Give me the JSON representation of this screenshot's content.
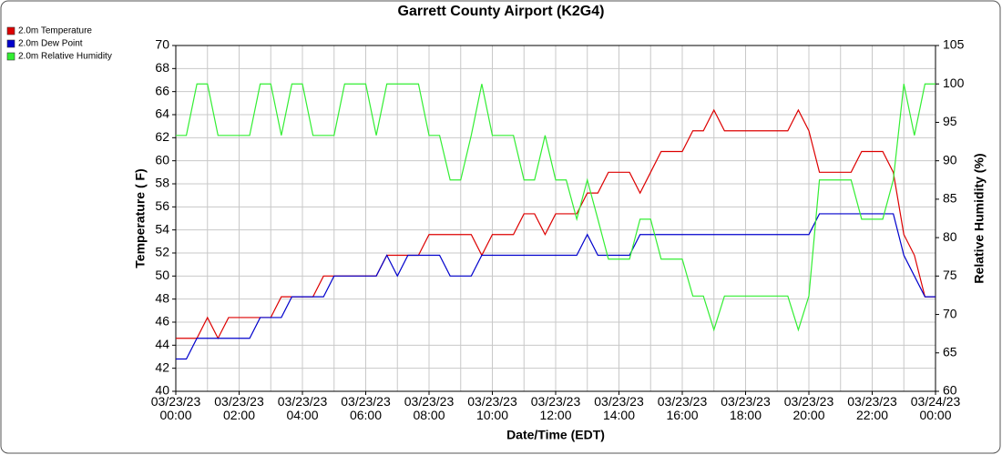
{
  "chart_data": {
    "type": "line",
    "title": "Garrett County Airport (K2G4)",
    "x_label": "Date/Time (EDT)",
    "y_label": "Temperature ( F)",
    "y2_label": "Relative Humidity (%)",
    "legend": "top-left",
    "grid": true,
    "x": [
      "2023-03-23 00:00",
      "2023-03-23 00:20",
      "2023-03-23 00:40",
      "2023-03-23 01:00",
      "2023-03-23 01:20",
      "2023-03-23 01:40",
      "2023-03-23 02:00",
      "2023-03-23 02:20",
      "2023-03-23 02:40",
      "2023-03-23 03:00",
      "2023-03-23 03:20",
      "2023-03-23 03:40",
      "2023-03-23 04:00",
      "2023-03-23 04:20",
      "2023-03-23 04:40",
      "2023-03-23 05:00",
      "2023-03-23 05:20",
      "2023-03-23 05:40",
      "2023-03-23 06:00",
      "2023-03-23 06:20",
      "2023-03-23 06:40",
      "2023-03-23 07:00",
      "2023-03-23 07:20",
      "2023-03-23 07:40",
      "2023-03-23 08:00",
      "2023-03-23 08:20",
      "2023-03-23 08:40",
      "2023-03-23 09:00",
      "2023-03-23 09:20",
      "2023-03-23 09:40",
      "2023-03-23 10:00",
      "2023-03-23 10:20",
      "2023-03-23 10:40",
      "2023-03-23 11:00",
      "2023-03-23 11:20",
      "2023-03-23 11:40",
      "2023-03-23 12:00",
      "2023-03-23 12:20",
      "2023-03-23 12:40",
      "2023-03-23 13:00",
      "2023-03-23 13:20",
      "2023-03-23 13:40",
      "2023-03-23 14:00",
      "2023-03-23 14:20",
      "2023-03-23 14:40",
      "2023-03-23 15:00",
      "2023-03-23 15:20",
      "2023-03-23 15:40",
      "2023-03-23 16:00",
      "2023-03-23 16:20",
      "2023-03-23 16:40",
      "2023-03-23 17:00",
      "2023-03-23 17:20",
      "2023-03-23 17:40",
      "2023-03-23 18:00",
      "2023-03-23 18:20",
      "2023-03-23 18:40",
      "2023-03-23 19:00",
      "2023-03-23 19:20",
      "2023-03-23 19:40",
      "2023-03-23 20:00",
      "2023-03-23 20:20",
      "2023-03-23 20:40",
      "2023-03-23 21:00",
      "2023-03-23 21:20",
      "2023-03-23 21:40",
      "2023-03-23 22:00",
      "2023-03-23 22:20",
      "2023-03-23 22:40",
      "2023-03-23 23:00",
      "2023-03-23 23:20",
      "2023-03-23 23:40",
      "2023-03-24 00:00"
    ],
    "series": [
      {
        "name": "2.0m Temperature",
        "color": "#dd0000",
        "axis": "y",
        "values": [
          44.6,
          44.6,
          44.6,
          46.4,
          44.6,
          46.4,
          46.4,
          46.4,
          46.4,
          46.4,
          48.2,
          48.2,
          48.2,
          48.2,
          50,
          50,
          50,
          50,
          50,
          50,
          51.8,
          51.8,
          51.8,
          51.8,
          53.6,
          53.6,
          53.6,
          53.6,
          53.6,
          51.8,
          53.6,
          53.6,
          53.6,
          55.4,
          55.4,
          53.6,
          55.4,
          55.4,
          55.4,
          57.2,
          57.2,
          59,
          59,
          59,
          57.2,
          59,
          60.8,
          60.8,
          60.8,
          62.6,
          62.6,
          64.4,
          62.6,
          62.6,
          62.6,
          62.6,
          62.6,
          62.6,
          62.6,
          64.4,
          62.6,
          59,
          59,
          59,
          59,
          60.8,
          60.8,
          60.8,
          59,
          53.6,
          51.8,
          48.2,
          48.2
        ]
      },
      {
        "name": "2.0m Dew Point",
        "color": "#0000cc",
        "axis": "y",
        "values": [
          42.8,
          42.8,
          44.6,
          44.6,
          44.6,
          44.6,
          44.6,
          44.6,
          46.4,
          46.4,
          46.4,
          48.2,
          48.2,
          48.2,
          48.2,
          50,
          50,
          50,
          50,
          50,
          51.8,
          50,
          51.8,
          51.8,
          51.8,
          51.8,
          50,
          50,
          50,
          51.8,
          51.8,
          51.8,
          51.8,
          51.8,
          51.8,
          51.8,
          51.8,
          51.8,
          51.8,
          53.6,
          51.8,
          51.8,
          51.8,
          51.8,
          53.6,
          53.6,
          53.6,
          53.6,
          53.6,
          53.6,
          53.6,
          53.6,
          53.6,
          53.6,
          53.6,
          53.6,
          53.6,
          53.6,
          53.6,
          53.6,
          53.6,
          55.4,
          55.4,
          55.4,
          55.4,
          55.4,
          55.4,
          55.4,
          55.4,
          51.8,
          50,
          48.2,
          48.2
        ]
      },
      {
        "name": "2.0m Relative Humidity",
        "color": "#33ee33",
        "axis": "y2",
        "values": [
          93.3,
          93.3,
          100,
          100,
          93.3,
          93.3,
          93.3,
          93.3,
          100,
          100,
          93.3,
          100,
          100,
          93.3,
          93.3,
          93.3,
          100,
          100,
          100,
          93.3,
          100,
          100,
          100,
          100,
          93.3,
          93.3,
          87.5,
          87.5,
          93.3,
          100,
          93.3,
          93.3,
          93.3,
          87.5,
          87.5,
          93.3,
          87.5,
          87.5,
          82.4,
          87.5,
          82.4,
          77.2,
          77.2,
          77.2,
          82.4,
          82.4,
          77.2,
          77.2,
          77.2,
          72.4,
          72.4,
          68,
          72.4,
          72.4,
          72.4,
          72.4,
          72.4,
          72.4,
          72.4,
          68,
          72.4,
          87.5,
          87.5,
          87.5,
          87.5,
          82.4,
          82.4,
          82.4,
          87.5,
          100,
          93.3,
          100,
          100
        ]
      }
    ],
    "xlim": [
      "2023-03-23 00:00",
      "2023-03-24 00:00"
    ],
    "xticks": [
      {
        "value": "2023-03-23 00:00",
        "label": "03/23/23 00:00"
      },
      {
        "value": "2023-03-23 02:00",
        "label": "03/23/23 02:00"
      },
      {
        "value": "2023-03-23 04:00",
        "label": "03/23/23 04:00"
      },
      {
        "value": "2023-03-23 06:00",
        "label": "03/23/23 06:00"
      },
      {
        "value": "2023-03-23 08:00",
        "label": "03/23/23 08:00"
      },
      {
        "value": "2023-03-23 10:00",
        "label": "03/23/23 10:00"
      },
      {
        "value": "2023-03-23 12:00",
        "label": "03/23/23 12:00"
      },
      {
        "value": "2023-03-23 14:00",
        "label": "03/23/23 14:00"
      },
      {
        "value": "2023-03-23 16:00",
        "label": "03/23/23 16:00"
      },
      {
        "value": "2023-03-23 18:00",
        "label": "03/23/23 18:00"
      },
      {
        "value": "2023-03-23 20:00",
        "label": "03/23/23 20:00"
      },
      {
        "value": "2023-03-23 22:00",
        "label": "03/23/23 22:00"
      },
      {
        "value": "2023-03-24 00:00",
        "label": "03/24/23 00:00"
      }
    ],
    "ylim": [
      40,
      70
    ],
    "yticks": [
      40,
      42,
      44,
      46,
      48,
      50,
      52,
      54,
      56,
      58,
      60,
      62,
      64,
      66,
      68,
      70
    ],
    "y2lim": [
      60,
      105
    ],
    "y2ticks": [
      60,
      65,
      70,
      75,
      80,
      85,
      90,
      95,
      100,
      105
    ]
  }
}
